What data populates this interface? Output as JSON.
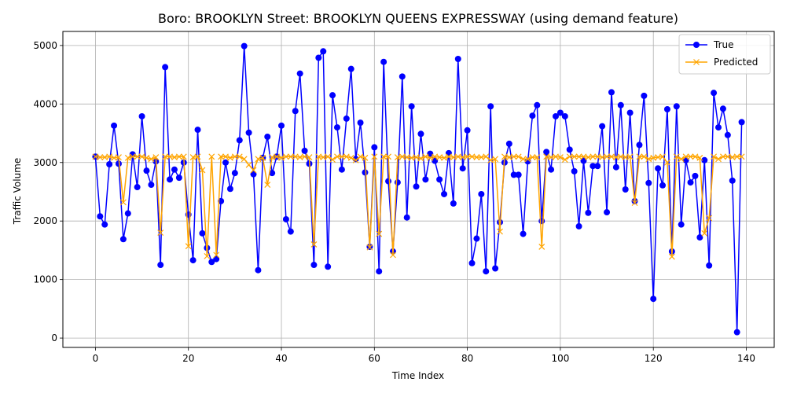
{
  "chart_data": {
    "type": "line",
    "title": "Boro: BROOKLYN Street: BROOKLYN QUEENS EXPRESSWAY (using demand feature)",
    "xlabel": "Time Index",
    "ylabel": "Traffic Volume",
    "xlim": [
      -7,
      146
    ],
    "ylim": [
      -160,
      5240
    ],
    "xticks": [
      0,
      20,
      40,
      60,
      80,
      100,
      120,
      140
    ],
    "yticks": [
      0,
      1000,
      2000,
      3000,
      4000,
      5000
    ],
    "grid": true,
    "legend_position": "upper-right",
    "series": [
      {
        "name": "True",
        "color": "#0000ff",
        "marker": "circle",
        "values": [
          3100,
          2080,
          1940,
          2970,
          3630,
          2980,
          1690,
          2130,
          3140,
          2580,
          3790,
          2860,
          2620,
          3020,
          1250,
          4630,
          2710,
          2880,
          2740,
          3000,
          2110,
          1330,
          3560,
          1790,
          1540,
          1300,
          1350,
          2340,
          3000,
          2550,
          2820,
          3380,
          4990,
          3510,
          2800,
          1160,
          3080,
          3440,
          2820,
          3100,
          3630,
          2030,
          1820,
          3880,
          4520,
          3200,
          2980,
          1250,
          4790,
          4900,
          1220,
          4150,
          3600,
          2880,
          3750,
          4600,
          3060,
          3680,
          2830,
          1560,
          3260,
          1140,
          4720,
          2680,
          1480,
          2660,
          4470,
          2060,
          3960,
          2590,
          3490,
          2710,
          3150,
          3030,
          2710,
          2460,
          3160,
          2300,
          4770,
          2900,
          3550,
          1280,
          1700,
          2460,
          1140,
          3960,
          1190,
          1980,
          3000,
          3320,
          2790,
          2790,
          1780,
          3020,
          3800,
          3980,
          2000,
          3180,
          2880,
          3790,
          3850,
          3790,
          3220,
          2850,
          1910,
          3030,
          2140,
          2940,
          2940,
          3620,
          2150,
          4200,
          2920,
          3980,
          2540,
          3850,
          2340,
          3300,
          4140,
          2650,
          670,
          2900,
          2610,
          3910,
          1480,
          3960,
          1940,
          3040,
          2660,
          2770,
          1720,
          3040,
          1240,
          4190,
          3600,
          3920,
          3470,
          2690,
          100,
          3690
        ]
      },
      {
        "name": "Predicted",
        "color": "#ffa500",
        "marker": "x",
        "values": [
          3100,
          3090,
          3090,
          3100,
          3080,
          3090,
          2320,
          3080,
          3100,
          3100,
          3100,
          3080,
          3060,
          3090,
          1800,
          3100,
          3100,
          3090,
          3100,
          3100,
          1570,
          3090,
          3100,
          2870,
          1400,
          3100,
          1420,
          3100,
          3100,
          3080,
          3100,
          3100,
          3060,
          2960,
          2870,
          3060,
          3080,
          2620,
          3090,
          3100,
          3080,
          3100,
          3100,
          3100,
          3090,
          3100,
          3090,
          1600,
          3100,
          3090,
          3100,
          3050,
          3100,
          3100,
          3100,
          3080,
          3040,
          3100,
          3080,
          1550,
          3100,
          1780,
          3100,
          3100,
          1420,
          3090,
          3100,
          3090,
          3080,
          3090,
          3070,
          3100,
          3080,
          3100,
          3090,
          3080,
          3100,
          3090,
          3100,
          3090,
          3100,
          3100,
          3090,
          3090,
          3100,
          3040,
          3060,
          1820,
          3100,
          3090,
          3100,
          3100,
          3060,
          3060,
          3090,
          3090,
          1560,
          3100,
          3090,
          3100,
          3090,
          3050,
          3100,
          3100,
          3100,
          3100,
          3090,
          3100,
          3100,
          3090,
          3100,
          3100,
          3090,
          3100,
          3090,
          3100,
          2310,
          3100,
          3100,
          3060,
          3080,
          3090,
          3100,
          3000,
          1390,
          3100,
          3060,
          3100,
          3100,
          3100,
          3080,
          1790,
          2050,
          3100,
          3060,
          3100,
          3100,
          3090,
          3100,
          3100
        ]
      }
    ]
  }
}
